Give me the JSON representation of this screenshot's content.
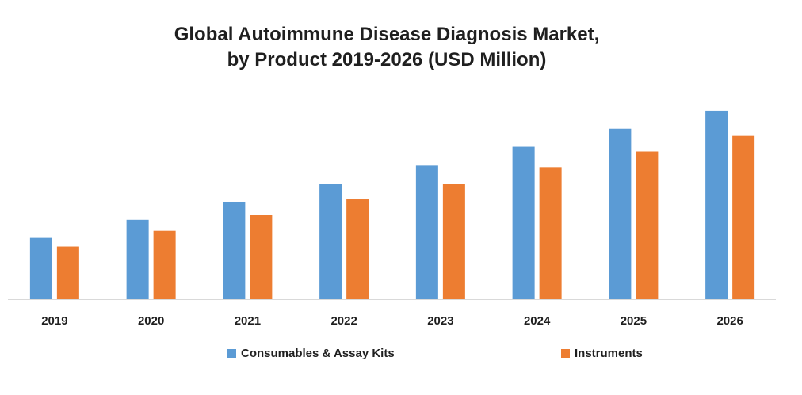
{
  "chart_data": {
    "type": "bar",
    "title_line1": "Global Autoimmune Disease Diagnosis Market,",
    "title_line2": "by Product 2019-2026 (USD Million)",
    "xlabel": "",
    "ylabel": "",
    "categories": [
      "2019",
      "2020",
      "2021",
      "2022",
      "2023",
      "2024",
      "2025",
      "2026"
    ],
    "series": [
      {
        "name": "Consumables & Assay Kits",
        "color": "#5B9BD5",
        "values": [
          78,
          101,
          124,
          147,
          170,
          194,
          217,
          240
        ]
      },
      {
        "name": "Instruments",
        "color": "#ED7D31",
        "values": [
          67,
          87,
          107,
          127,
          147,
          168,
          188,
          208
        ]
      }
    ],
    "ylim": [
      0,
      250
    ],
    "grid": false,
    "legend_position": "bottom"
  }
}
